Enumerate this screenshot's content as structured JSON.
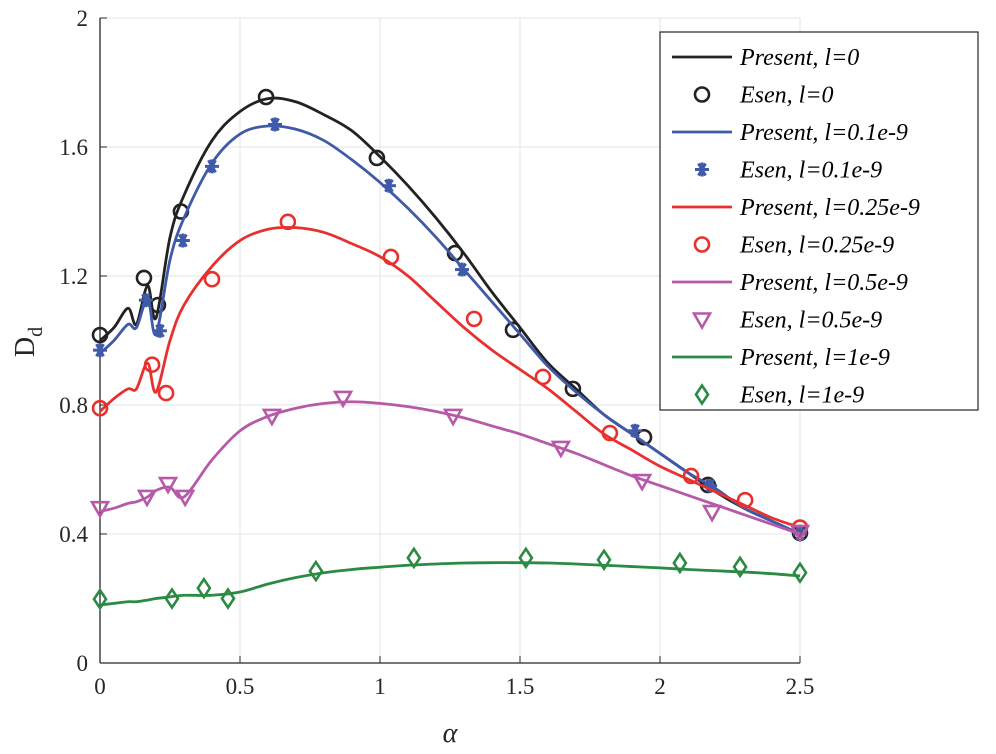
{
  "chart_data": {
    "type": "line",
    "title": "",
    "xlabel": "α",
    "ylabel": "D",
    "ylabel_sub": "d",
    "xlim": [
      0,
      2.5
    ],
    "ylim": [
      0,
      2
    ],
    "xticks": [
      0,
      0.5,
      1,
      1.5,
      2,
      2.5
    ],
    "xtick_labels": [
      "0",
      "0.5",
      "1",
      "1.5",
      "2",
      "2.5"
    ],
    "yticks": [
      0,
      0.4,
      0.8,
      1.2,
      1.6,
      2
    ],
    "ytick_labels": [
      "0",
      "0.4",
      "0.8",
      "1.2",
      "1.6",
      "2"
    ],
    "grid": true,
    "legend_position": "top-right",
    "line_x": [
      0,
      0.05,
      0.1,
      0.13,
      0.17,
      0.2,
      0.25,
      0.3,
      0.4,
      0.5,
      0.6,
      0.7,
      0.8,
      0.9,
      1.0,
      1.1,
      1.2,
      1.3,
      1.4,
      1.5,
      1.6,
      1.7,
      1.8,
      1.9,
      2.0,
      2.1,
      2.2,
      2.3,
      2.4,
      2.5
    ],
    "series": [
      {
        "name": "Present, l=0",
        "kind": "line",
        "color": "#222222",
        "y": [
          1.0,
          1.04,
          1.1,
          1.05,
          1.17,
          1.07,
          1.32,
          1.45,
          1.62,
          1.71,
          1.75,
          1.74,
          1.7,
          1.65,
          1.57,
          1.48,
          1.38,
          1.27,
          1.15,
          1.04,
          0.93,
          0.85,
          0.77,
          0.71,
          0.65,
          0.59,
          0.53,
          0.48,
          0.44,
          0.4
        ]
      },
      {
        "name": "Esen, l=0",
        "kind": "marker",
        "marker": "circle",
        "color": "#222222",
        "x": [
          0,
          0.157,
          0.207,
          0.289,
          0.593,
          0.989,
          1.268,
          1.475,
          1.689,
          1.943,
          2.171,
          2.5
        ],
        "y": [
          1.017,
          1.194,
          1.11,
          1.4,
          1.755,
          1.566,
          1.271,
          1.033,
          0.85,
          0.7,
          0.552,
          0.403
        ]
      },
      {
        "name": "Present, l=0.1e-9",
        "kind": "line",
        "color": "#3f5aa8",
        "y": [
          0.96,
          1.0,
          1.05,
          1.04,
          1.13,
          1.02,
          1.25,
          1.38,
          1.55,
          1.64,
          1.665,
          1.655,
          1.62,
          1.56,
          1.49,
          1.41,
          1.32,
          1.22,
          1.12,
          1.02,
          0.92,
          0.84,
          0.77,
          0.71,
          0.65,
          0.59,
          0.54,
          0.48,
          0.44,
          0.4
        ]
      },
      {
        "name": "Esen, l=0.1e-9",
        "kind": "marker",
        "marker": "asterisk",
        "color": "#3f5aa8",
        "x": [
          0,
          0.164,
          0.214,
          0.296,
          0.4,
          0.625,
          1.032,
          1.293,
          1.911,
          2.179,
          2.5
        ],
        "y": [
          0.97,
          1.125,
          1.03,
          1.31,
          1.54,
          1.67,
          1.48,
          1.22,
          0.72,
          0.55,
          0.4
        ]
      },
      {
        "name": "Present, l=0.25e-9",
        "kind": "line",
        "color": "#e8302f",
        "y": [
          0.78,
          0.82,
          0.85,
          0.85,
          0.93,
          0.84,
          1.0,
          1.11,
          1.23,
          1.31,
          1.345,
          1.35,
          1.335,
          1.3,
          1.26,
          1.2,
          1.12,
          1.04,
          0.97,
          0.91,
          0.85,
          0.78,
          0.71,
          0.66,
          0.61,
          0.57,
          0.53,
          0.49,
          0.45,
          0.42
        ]
      },
      {
        "name": "Esen, l=0.25e-9",
        "kind": "marker",
        "marker": "circle",
        "color": "#e8302f",
        "x": [
          0,
          0.186,
          0.236,
          0.4,
          0.671,
          1.039,
          1.336,
          1.582,
          1.821,
          2.111,
          2.304,
          2.5
        ],
        "y": [
          0.79,
          0.925,
          0.837,
          1.19,
          1.368,
          1.259,
          1.067,
          0.887,
          0.713,
          0.58,
          0.505,
          0.42
        ]
      },
      {
        "name": "Present, l=0.5e-9",
        "kind": "line",
        "color": "#b65aa8",
        "y": [
          0.47,
          0.48,
          0.495,
          0.5,
          0.515,
          0.535,
          0.545,
          0.515,
          0.63,
          0.72,
          0.765,
          0.79,
          0.805,
          0.81,
          0.805,
          0.795,
          0.78,
          0.76,
          0.735,
          0.71,
          0.68,
          0.65,
          0.615,
          0.58,
          0.55,
          0.52,
          0.49,
          0.46,
          0.43,
          0.4
        ]
      },
      {
        "name": "Esen, l=0.5e-9",
        "kind": "marker",
        "marker": "triangle-down",
        "color": "#b65aa8",
        "x": [
          0,
          0.168,
          0.243,
          0.304,
          0.614,
          0.868,
          1.261,
          1.646,
          1.936,
          2.186,
          2.5
        ],
        "y": [
          0.48,
          0.515,
          0.555,
          0.515,
          0.766,
          0.822,
          0.766,
          0.667,
          0.564,
          0.468,
          0.406
        ]
      },
      {
        "name": "Present, l=1e-9",
        "kind": "line",
        "color": "#2b8a43",
        "y": [
          0.18,
          0.185,
          0.19,
          0.19,
          0.195,
          0.2,
          0.205,
          0.21,
          0.21,
          0.22,
          0.245,
          0.265,
          0.28,
          0.29,
          0.297,
          0.303,
          0.307,
          0.31,
          0.311,
          0.311,
          0.31,
          0.307,
          0.303,
          0.299,
          0.295,
          0.29,
          0.286,
          0.282,
          0.277,
          0.27
        ]
      },
      {
        "name": "Esen, l=1e-9",
        "kind": "marker",
        "marker": "diamond",
        "color": "#2b8a43",
        "x": [
          0,
          0.257,
          0.371,
          0.457,
          0.771,
          1.121,
          1.521,
          1.8,
          2.071,
          2.286,
          2.5
        ],
        "y": [
          0.198,
          0.2,
          0.232,
          0.2,
          0.285,
          0.326,
          0.326,
          0.32,
          0.31,
          0.298,
          0.28
        ]
      }
    ]
  }
}
